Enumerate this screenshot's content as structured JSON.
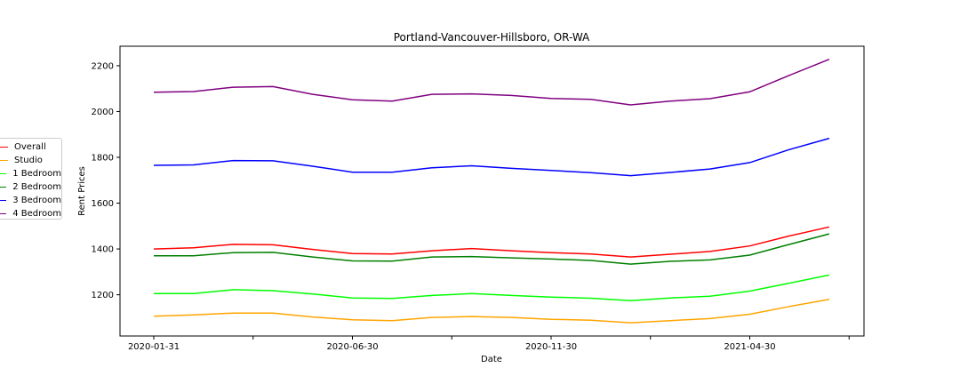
{
  "chart_data": {
    "type": "line",
    "title": "Portland-Vancouver-Hillsboro, OR-WA",
    "xlabel": "Date",
    "ylabel": "Rent Prices",
    "ylim": [
      1020,
      2285
    ],
    "y_ticks": [
      1200,
      1400,
      1600,
      1800,
      2000,
      2200
    ],
    "x": [
      "2020-01-31",
      "2020-02-29",
      "2020-03-31",
      "2020-04-30",
      "2020-05-31",
      "2020-06-30",
      "2020-07-31",
      "2020-08-31",
      "2020-09-30",
      "2020-10-31",
      "2020-11-30",
      "2020-12-31",
      "2021-01-31",
      "2021-02-28",
      "2021-03-31",
      "2021-04-30",
      "2021-05-31",
      "2021-06-30"
    ],
    "x_tick_labels": [
      "2020-01-31",
      "2020-06-30",
      "2020-11-30",
      "2021-04-30"
    ],
    "legend_placement": "center-left outside",
    "grid": false,
    "series": [
      {
        "name": "Overall",
        "color": "#ff0000",
        "values": [
          1400,
          1405,
          1420,
          1418,
          1398,
          1380,
          1378,
          1392,
          1402,
          1392,
          1384,
          1378,
          1365,
          1377,
          1389,
          1413,
          1457,
          1496
        ]
      },
      {
        "name": "Studio",
        "color": "#ffa500",
        "values": [
          1106,
          1112,
          1120,
          1120,
          1103,
          1091,
          1087,
          1101,
          1105,
          1101,
          1093,
          1089,
          1078,
          1087,
          1096,
          1115,
          1149,
          1180
        ]
      },
      {
        "name": "1 Bedroom",
        "color": "#00ff00",
        "values": [
          1205,
          1205,
          1222,
          1218,
          1203,
          1186,
          1184,
          1197,
          1205,
          1197,
          1190,
          1185,
          1174,
          1186,
          1194,
          1216,
          1251,
          1286
        ]
      },
      {
        "name": "2 Bedroom",
        "color": "#008000",
        "values": [
          1370,
          1370,
          1384,
          1385,
          1365,
          1348,
          1347,
          1365,
          1367,
          1361,
          1356,
          1350,
          1334,
          1346,
          1352,
          1373,
          1420,
          1466
        ]
      },
      {
        "name": "3 Bedroom",
        "color": "#0000ff",
        "values": [
          1765,
          1767,
          1786,
          1785,
          1761,
          1735,
          1735,
          1754,
          1763,
          1752,
          1743,
          1733,
          1720,
          1734,
          1749,
          1777,
          1834,
          1883
        ]
      },
      {
        "name": "4 Bedroom",
        "color": "#800080",
        "values": [
          2084,
          2087,
          2106,
          2109,
          2075,
          2051,
          2045,
          2075,
          2077,
          2070,
          2057,
          2053,
          2029,
          2045,
          2056,
          2086,
          2158,
          2228
        ]
      }
    ]
  }
}
